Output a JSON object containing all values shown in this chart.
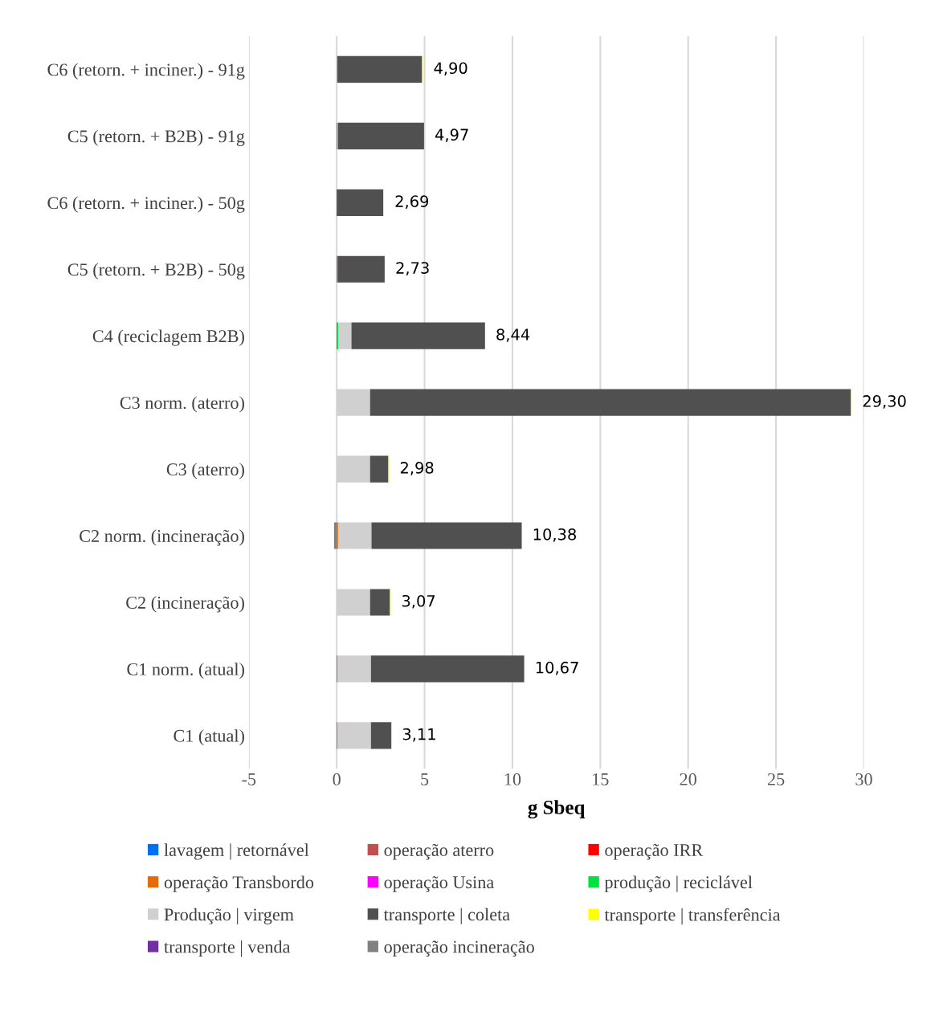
{
  "chart_data": {
    "type": "bar",
    "orientation": "horizontal",
    "stacked": true,
    "xlabel": "g Sbeq",
    "categories": [
      "C6 (retorn. + inciner.) - 91g",
      "C5 (retorn. + B2B) - 91g",
      "C6 (retorn. + inciner.) - 50g",
      "C5 (retorn. + B2B) - 50g",
      "C4 (reciclagem B2B)",
      "C3 norm. (aterro)",
      "C3 (aterro)",
      "C2 norm. (incineração)",
      "C2 (incineração)",
      "C1 norm. (atual)",
      "C1 (atual)"
    ],
    "series": [
      {
        "name": "lavagem | retornável",
        "color": "#0070f0",
        "values": [
          null,
          null,
          null,
          null,
          null,
          null,
          null,
          null,
          null,
          null,
          null
        ]
      },
      {
        "name": "operação aterro",
        "color": "#c0504d",
        "values": [
          null,
          0.04,
          null,
          0.05,
          0.04,
          null,
          null,
          null,
          null,
          0.05,
          0.05
        ]
      },
      {
        "name": "operação IRR",
        "color": "#ff0000",
        "values": [
          null,
          null,
          null,
          null,
          null,
          null,
          null,
          null,
          null,
          null,
          null
        ]
      },
      {
        "name": "operação Transbordo",
        "color": "#e36c09",
        "values": [
          null,
          null,
          null,
          null,
          null,
          null,
          null,
          0.08,
          null,
          null,
          null
        ]
      },
      {
        "name": "operação Usina",
        "color": "#ff00ff",
        "values": [
          null,
          null,
          null,
          null,
          null,
          null,
          null,
          null,
          null,
          null,
          null
        ]
      },
      {
        "name": "produção | reciclável",
        "color": "#00e040",
        "values": [
          null,
          null,
          null,
          null,
          0.05,
          null,
          null,
          null,
          null,
          null,
          null
        ]
      },
      {
        "name": "Produção | virgem",
        "color": "#d0d0d0",
        "values": [
          0.03,
          0.03,
          null,
          null,
          0.75,
          1.9,
          1.9,
          1.9,
          1.9,
          1.9,
          1.9
        ]
      },
      {
        "name": "transporte | coleta",
        "color": "#505050",
        "values": [
          4.83,
          4.9,
          2.65,
          2.68,
          7.6,
          27.36,
          1.04,
          8.55,
          1.13,
          8.72,
          1.16
        ]
      },
      {
        "name": "transporte | transferência",
        "color": "#ffff00",
        "values": [
          0.04,
          null,
          0.04,
          null,
          null,
          0.04,
          0.04,
          null,
          0.04,
          null,
          null
        ]
      },
      {
        "name": "transporte | venda",
        "color": "#7030a0",
        "values": [
          null,
          null,
          null,
          null,
          null,
          null,
          null,
          null,
          null,
          null,
          null
        ]
      },
      {
        "name": "operação incineração",
        "color": "#808080",
        "values": [
          null,
          null,
          null,
          null,
          null,
          null,
          null,
          -0.15,
          null,
          null,
          null
        ]
      }
    ],
    "totals": [
      "4,90",
      "4,97",
      "2,69",
      "2,73",
      "8,44",
      "29,30",
      "2,98",
      "10,38",
      "3,07",
      "10,67",
      "3,11"
    ],
    "xlim": [
      -5,
      30
    ],
    "xticks": [
      -5,
      0,
      5,
      10,
      15,
      20,
      25,
      30
    ],
    "grid": "x",
    "legend": "bottom"
  }
}
